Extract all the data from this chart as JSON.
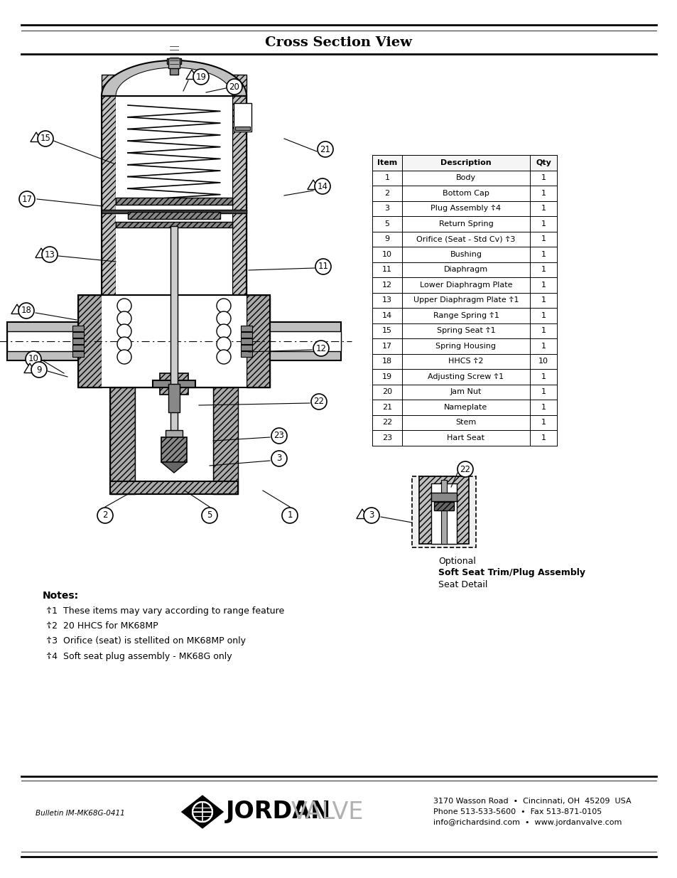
{
  "title": "Cross Section View",
  "background_color": "#ffffff",
  "table_data": [
    [
      "Item",
      "Description",
      "Qty"
    ],
    [
      "1",
      "Body",
      "1"
    ],
    [
      "2",
      "Bottom Cap",
      "1"
    ],
    [
      "3",
      "Plug Assembly ☦4",
      "1"
    ],
    [
      "5",
      "Return Spring",
      "1"
    ],
    [
      "9",
      "Orifice (Seat - Std Cv) ☦3",
      "1"
    ],
    [
      "10",
      "Bushing",
      "1"
    ],
    [
      "11",
      "Diaphragm",
      "1"
    ],
    [
      "12",
      "Lower Diaphragm Plate",
      "1"
    ],
    [
      "13",
      "Upper Diaphragm Plate ☦1",
      "1"
    ],
    [
      "14",
      "Range Spring ☦1",
      "1"
    ],
    [
      "15",
      "Spring Seat ☦1",
      "1"
    ],
    [
      "17",
      "Spring Housing",
      "1"
    ],
    [
      "18",
      "HHCS ☦2",
      "10"
    ],
    [
      "19",
      "Adjusting Screw ☦1",
      "1"
    ],
    [
      "20",
      "Jam Nut",
      "1"
    ],
    [
      "21",
      "Nameplate",
      "1"
    ],
    [
      "22",
      "Stem",
      "1"
    ],
    [
      "23",
      "Hart Seat",
      "1"
    ]
  ],
  "notes_title": "Notes:",
  "notes": [
    "☦1  These items may vary according to range feature",
    "☦2  20 HHCS for MK68MP",
    "☦3  Orifice (seat) is stellited on MK68MP only",
    "☦4  Soft seat plug assembly - MK68G only"
  ],
  "optional_label_lines": [
    "Optional",
    "Soft Seat Trim/Plug Assembly",
    "Seat Detail"
  ],
  "footer_line1": "3170 Wasson Road  •  Cincinnati, OH  45209  USA",
  "footer_line2": "Phone 513-533-5600  •  Fax 513-871-0105",
  "footer_line3": "info@richardsind.com  •  www.jordanvalve.com",
  "bulletin": "Bulletin IM-MK68G-0411"
}
